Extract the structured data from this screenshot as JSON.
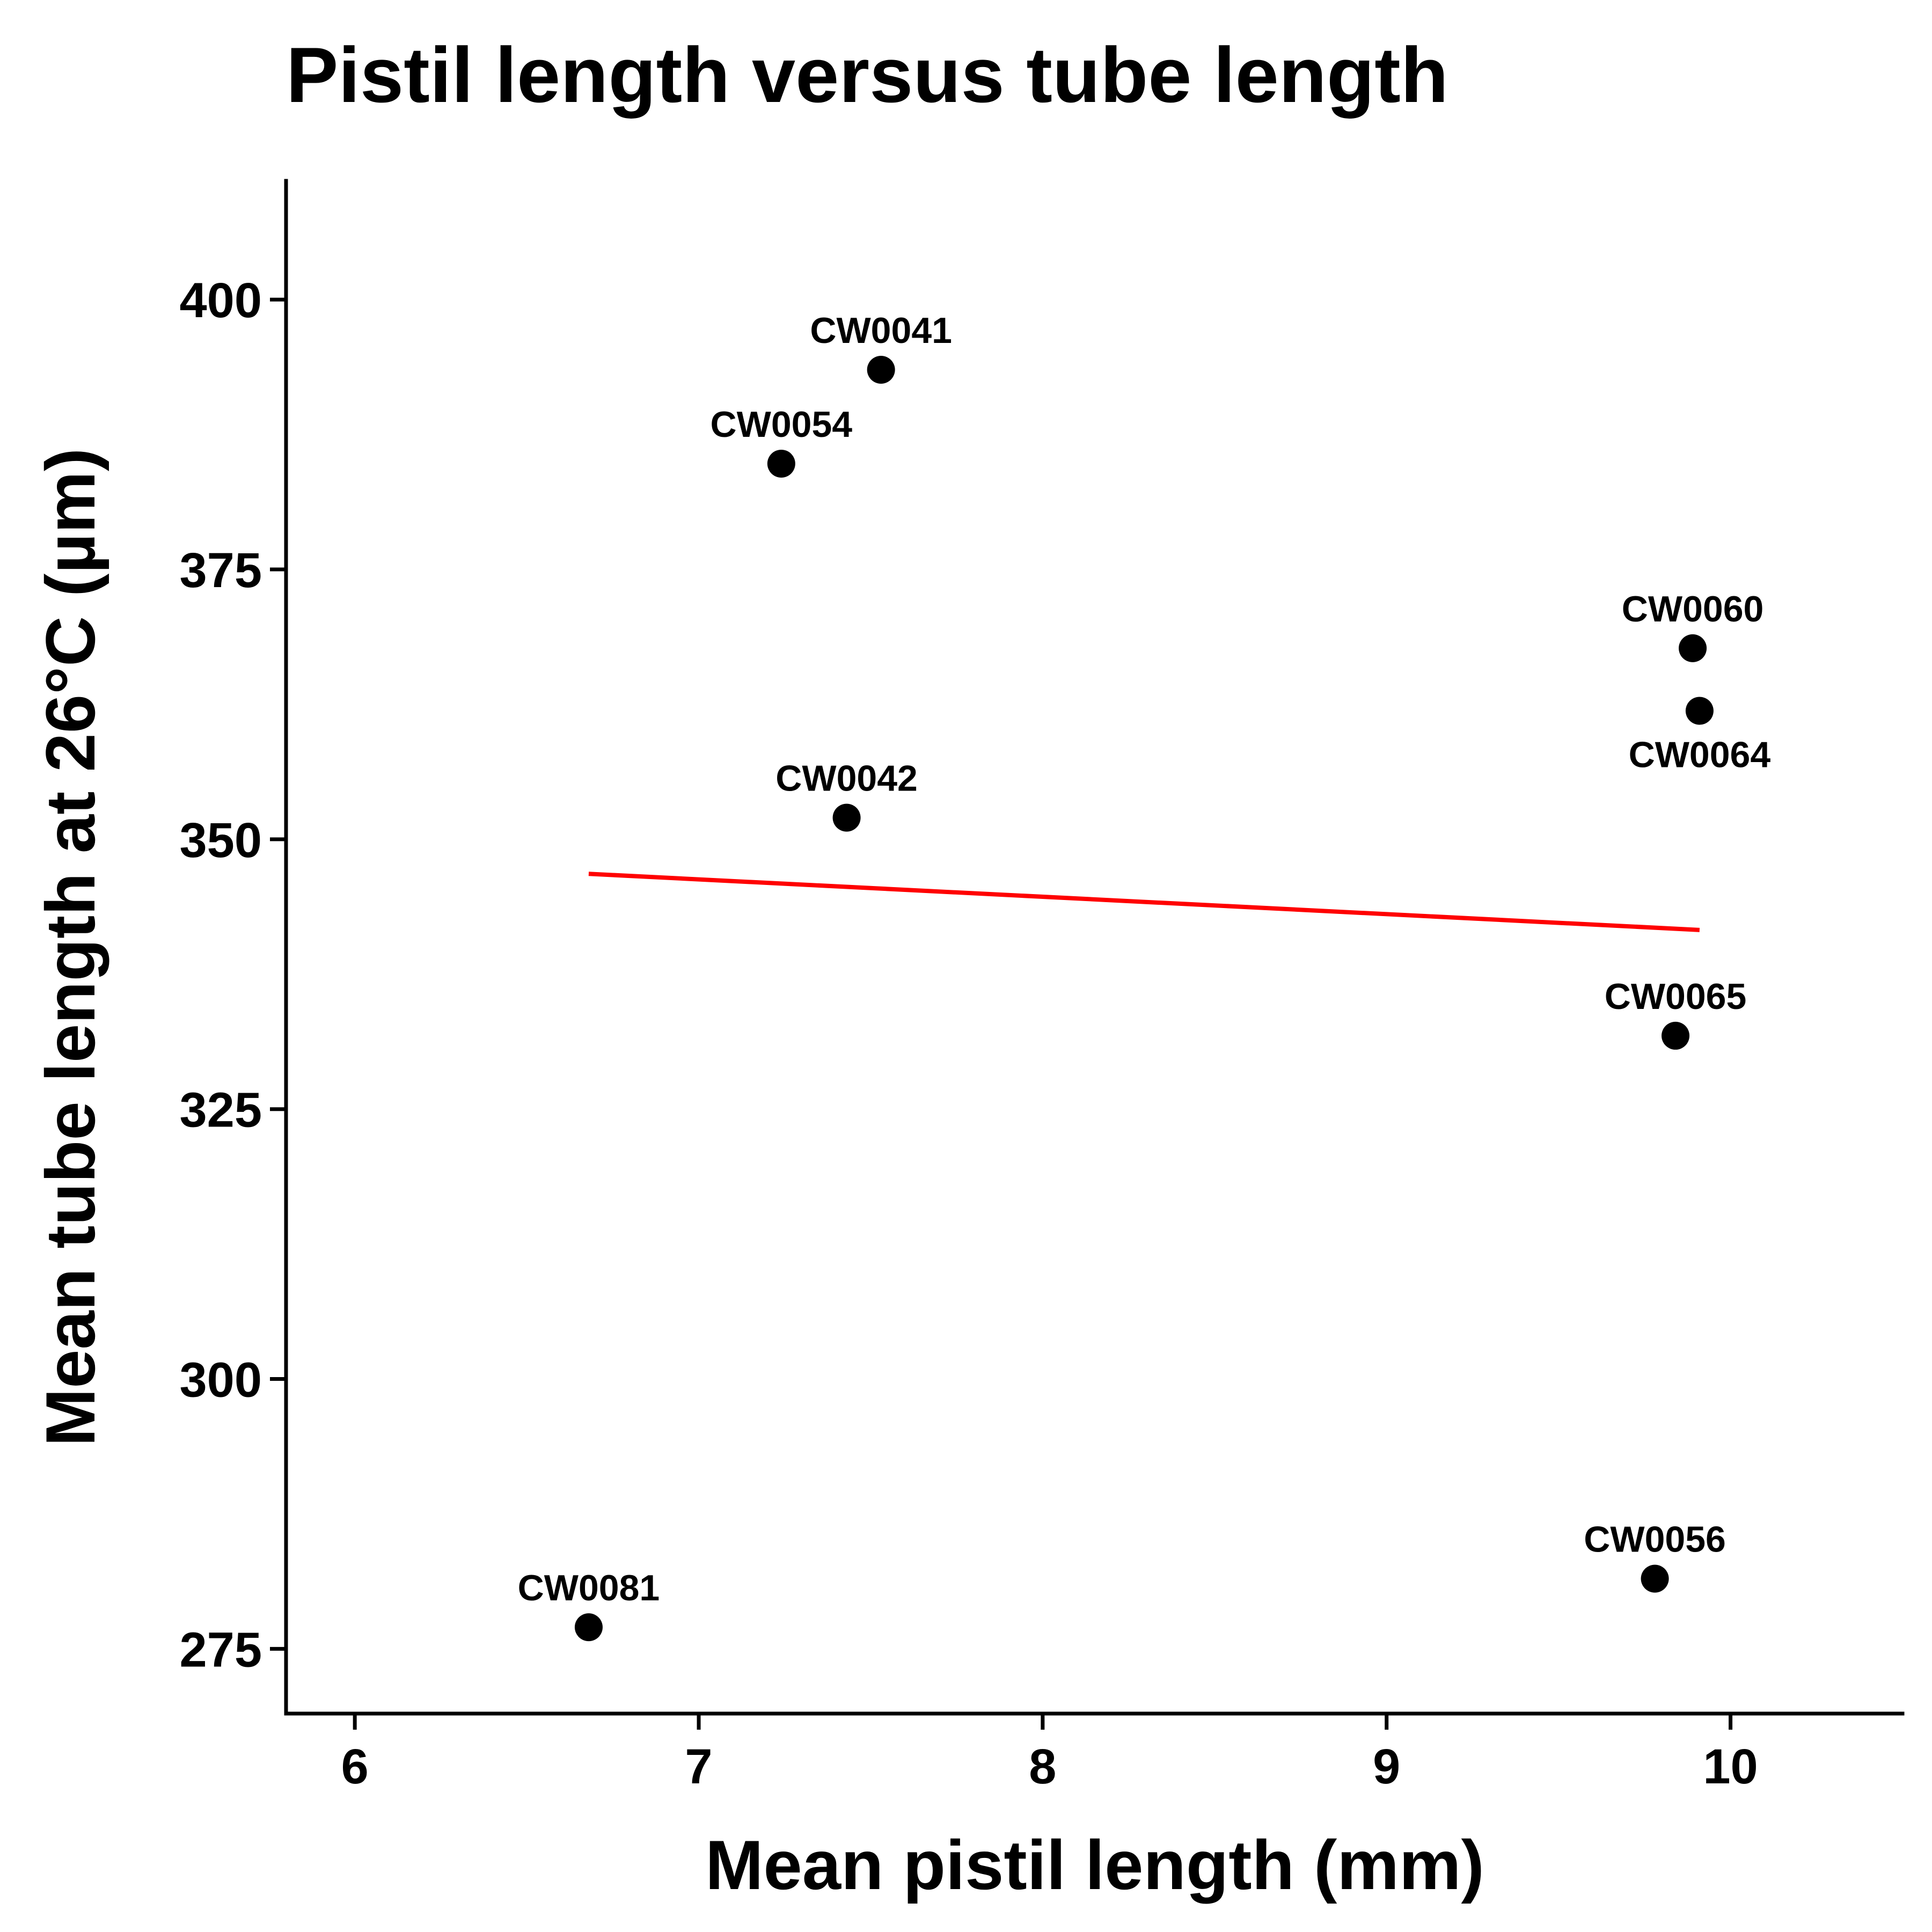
{
  "chart_data": {
    "type": "scatter",
    "title": "Pistil length versus tube length",
    "xlabel": "Mean pistil length (mm)",
    "ylabel": "Mean tube length at 26°C (µm)",
    "xlim": [
      5.8,
      10.5
    ],
    "ylim": [
      269,
      411
    ],
    "xticks": [
      6,
      7,
      8,
      9,
      10
    ],
    "yticks": [
      275,
      300,
      325,
      350,
      375,
      400
    ],
    "grid": false,
    "legend": "none",
    "points": [
      {
        "label": "CW0041",
        "x": 7.53,
        "y": 393.5,
        "label_position": "above"
      },
      {
        "label": "CW0054",
        "x": 7.24,
        "y": 384.8,
        "label_position": "above"
      },
      {
        "label": "CW0060",
        "x": 9.89,
        "y": 367.7,
        "label_position": "above"
      },
      {
        "label": "CW0064",
        "x": 9.91,
        "y": 361.9,
        "label_position": "below"
      },
      {
        "label": "CW0042",
        "x": 7.43,
        "y": 352.0,
        "label_position": "above"
      },
      {
        "label": "CW0065",
        "x": 9.84,
        "y": 331.8,
        "label_position": "above"
      },
      {
        "label": "CW0056",
        "x": 9.78,
        "y": 281.5,
        "label_position": "above"
      },
      {
        "label": "CW0081",
        "x": 6.68,
        "y": 277.0,
        "label_position": "above"
      }
    ],
    "trendline": {
      "x": [
        6.68,
        9.91
      ],
      "y": [
        346.8,
        341.6
      ]
    },
    "colors": {
      "points": "#000000",
      "trendline": "#ff0000",
      "axis": "#000000",
      "text": "#000000"
    }
  }
}
